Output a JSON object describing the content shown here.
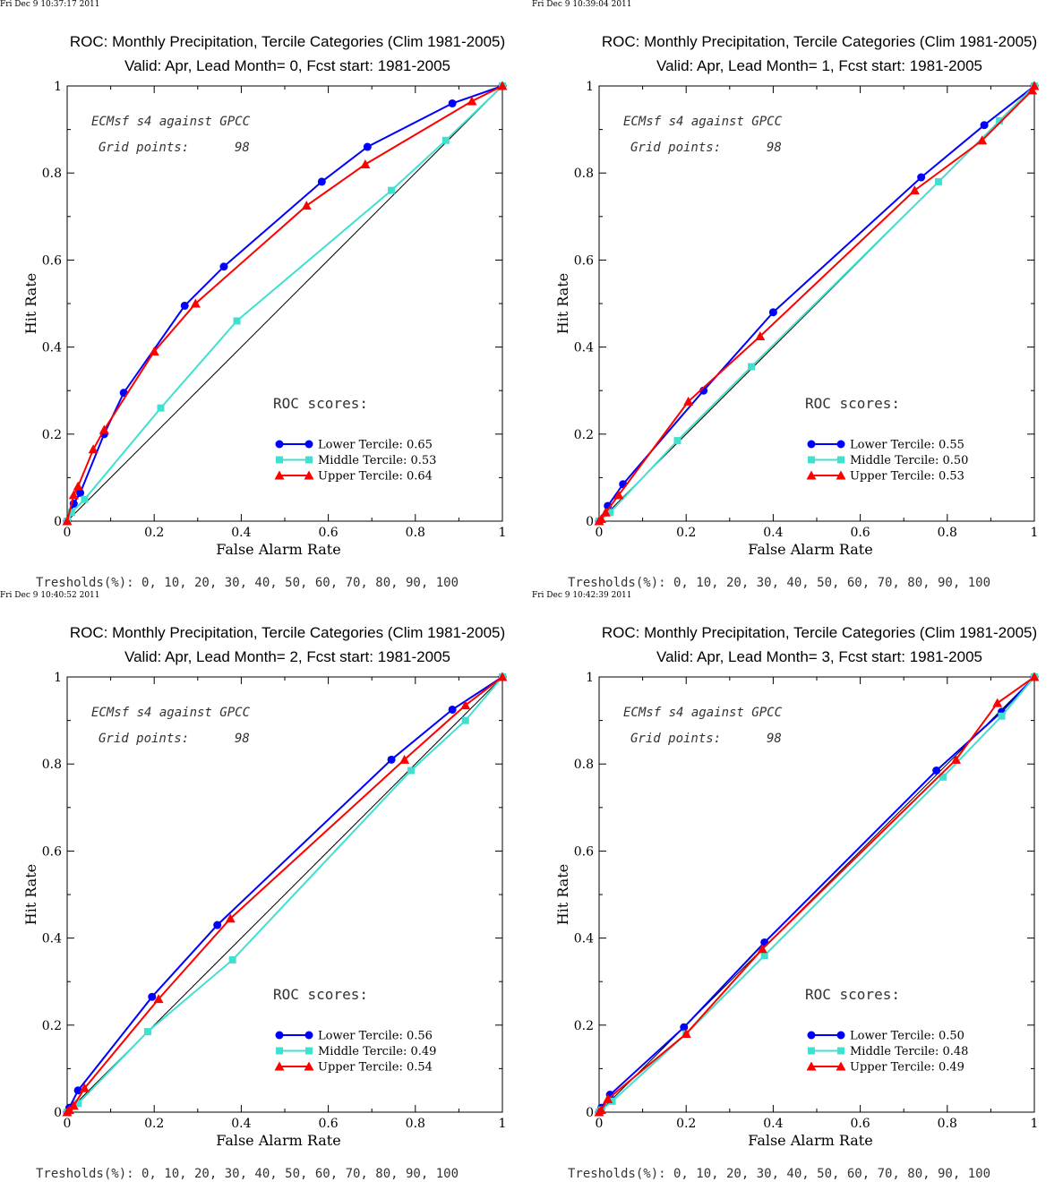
{
  "thresholds_text": "Tresholds(%): 0, 10, 20, 30, 40, 50, 60, 70, 80, 90, 100",
  "colors": {
    "lower": "#0000ff",
    "middle": "#40e0d0",
    "upper": "#ff0000",
    "diagonal": "#000000"
  },
  "chart_data": [
    {
      "type": "line",
      "timestamp": "Fri Dec  9 10:37:17 2011",
      "title": "ROC: Monthly Precipitation, Tercile Categories (Clim 1981-2005)",
      "subtitle": "Valid: Apr, Lead Month= 0, Fcst start: 1981-2005",
      "xlabel": "False Alarm Rate",
      "ylabel": "Hit Rate",
      "xlim": [
        0,
        1
      ],
      "ylim": [
        0,
        1
      ],
      "ticks": [
        "0",
        "0.2",
        "0.4",
        "0.6",
        "0.8",
        "1"
      ],
      "annotation1": "ECMsf s4 against GPCC",
      "annotation2_label": "Grid points:",
      "annotation2_value": "98",
      "roc_title": "ROC scores:",
      "series": [
        {
          "name": "Lower Tercile: 0.65",
          "key": "lower",
          "marker": "circle",
          "x": [
            0,
            0.015,
            0.03,
            0.085,
            0.13,
            0.27,
            0.36,
            0.585,
            0.69,
            0.885,
            1
          ],
          "y": [
            0,
            0.04,
            0.065,
            0.2,
            0.295,
            0.495,
            0.585,
            0.78,
            0.86,
            0.96,
            1
          ]
        },
        {
          "name": "Middle Tercile: 0.53",
          "key": "middle",
          "marker": "square",
          "x": [
            0,
            0.01,
            0.04,
            0.215,
            0.39,
            0.745,
            0.87,
            1
          ],
          "y": [
            0,
            0.02,
            0.05,
            0.26,
            0.46,
            0.76,
            0.875,
            1
          ]
        },
        {
          "name": "Upper Tercile: 0.64",
          "key": "upper",
          "marker": "triangle",
          "x": [
            0,
            0.015,
            0.025,
            0.06,
            0.085,
            0.2,
            0.295,
            0.55,
            0.685,
            0.93,
            1
          ],
          "y": [
            0,
            0.06,
            0.08,
            0.165,
            0.21,
            0.39,
            0.5,
            0.725,
            0.82,
            0.965,
            1
          ]
        }
      ]
    },
    {
      "type": "line",
      "timestamp": "Fri Dec  9 10:39:04 2011",
      "title": "ROC: Monthly Precipitation, Tercile Categories (Clim 1981-2005)",
      "subtitle": "Valid: Apr, Lead Month= 1, Fcst start: 1981-2005",
      "xlabel": "False Alarm Rate",
      "ylabel": "Hit Rate",
      "xlim": [
        0,
        1
      ],
      "ylim": [
        0,
        1
      ],
      "ticks": [
        "0",
        "0.2",
        "0.4",
        "0.6",
        "0.8",
        "1"
      ],
      "annotation1": "ECMsf s4 against GPCC",
      "annotation2_label": "Grid points:",
      "annotation2_value": "98",
      "roc_title": "ROC scores:",
      "series": [
        {
          "name": "Lower Tercile: 0.55",
          "key": "lower",
          "marker": "circle",
          "x": [
            0,
            0.02,
            0.055,
            0.24,
            0.4,
            0.74,
            0.885,
            1
          ],
          "y": [
            0,
            0.035,
            0.085,
            0.3,
            0.48,
            0.79,
            0.91,
            1
          ]
        },
        {
          "name": "Middle Tercile: 0.50",
          "key": "middle",
          "marker": "square",
          "x": [
            0,
            0.025,
            0.18,
            0.35,
            0.78,
            0.92,
            1
          ],
          "y": [
            0,
            0.02,
            0.185,
            0.355,
            0.78,
            0.92,
            1
          ]
        },
        {
          "name": "Upper Tercile: 0.53",
          "key": "upper",
          "marker": "triangle",
          "x": [
            0,
            0.005,
            0.015,
            0.045,
            0.205,
            0.37,
            0.725,
            0.88,
            0.995,
            1
          ],
          "y": [
            0,
            0.005,
            0.02,
            0.06,
            0.275,
            0.425,
            0.76,
            0.875,
            0.99,
            1
          ]
        }
      ]
    },
    {
      "type": "line",
      "timestamp": "Fri Dec  9 10:40:52 2011",
      "title": "ROC: Monthly Precipitation, Tercile Categories (Clim 1981-2005)",
      "subtitle": "Valid: Apr, Lead Month= 2, Fcst start: 1981-2005",
      "xlabel": "False Alarm Rate",
      "ylabel": "Hit Rate",
      "xlim": [
        0,
        1
      ],
      "ylim": [
        0,
        1
      ],
      "ticks": [
        "0",
        "0.2",
        "0.4",
        "0.6",
        "0.8",
        "1"
      ],
      "annotation1": "ECMsf s4 against GPCC",
      "annotation2_label": "Grid points:",
      "annotation2_value": "98",
      "roc_title": "ROC scores:",
      "series": [
        {
          "name": "Lower Tercile: 0.56",
          "key": "lower",
          "marker": "circle",
          "x": [
            0,
            0.005,
            0.025,
            0.195,
            0.345,
            0.745,
            0.885,
            1
          ],
          "y": [
            0,
            0.01,
            0.05,
            0.265,
            0.43,
            0.81,
            0.925,
            1
          ]
        },
        {
          "name": "Middle Tercile: 0.49",
          "key": "middle",
          "marker": "square",
          "x": [
            0,
            0.025,
            0.185,
            0.38,
            0.79,
            0.915,
            1
          ],
          "y": [
            0,
            0.02,
            0.185,
            0.35,
            0.785,
            0.9,
            1
          ]
        },
        {
          "name": "Upper Tercile: 0.54",
          "key": "upper",
          "marker": "triangle",
          "x": [
            0,
            0.005,
            0.015,
            0.04,
            0.21,
            0.375,
            0.775,
            0.915,
            1
          ],
          "y": [
            0,
            0.005,
            0.015,
            0.055,
            0.26,
            0.445,
            0.81,
            0.935,
            1
          ]
        }
      ]
    },
    {
      "type": "line",
      "timestamp": "Fri Dec  9 10:42:39 2011",
      "title": "ROC: Monthly Precipitation, Tercile Categories (Clim 1981-2005)",
      "subtitle": "Valid: Apr, Lead Month= 3, Fcst start: 1981-2005",
      "xlabel": "False Alarm Rate",
      "ylabel": "Hit Rate",
      "xlim": [
        0,
        1
      ],
      "ylim": [
        0,
        1
      ],
      "ticks": [
        "0",
        "0.2",
        "0.4",
        "0.6",
        "0.8",
        "1"
      ],
      "annotation1": "ECMsf s4 against GPCC",
      "annotation2_label": "Grid points:",
      "annotation2_value": "98",
      "roc_title": "ROC scores:",
      "series": [
        {
          "name": "Lower Tercile: 0.50",
          "key": "lower",
          "marker": "circle",
          "x": [
            0,
            0.005,
            0.025,
            0.195,
            0.38,
            0.775,
            0.925,
            1
          ],
          "y": [
            0,
            0.01,
            0.04,
            0.195,
            0.39,
            0.785,
            0.92,
            1
          ]
        },
        {
          "name": "Middle Tercile: 0.48",
          "key": "middle",
          "marker": "square",
          "x": [
            0,
            0.005,
            0.03,
            0.2,
            0.38,
            0.79,
            0.925,
            1
          ],
          "y": [
            0,
            0.005,
            0.025,
            0.18,
            0.36,
            0.77,
            0.91,
            1
          ]
        },
        {
          "name": "Upper Tercile: 0.49",
          "key": "upper",
          "marker": "triangle",
          "x": [
            0,
            0.005,
            0.02,
            0.2,
            0.375,
            0.82,
            0.915,
            1
          ],
          "y": [
            0,
            0.005,
            0.03,
            0.18,
            0.375,
            0.81,
            0.94,
            1
          ]
        }
      ]
    }
  ]
}
